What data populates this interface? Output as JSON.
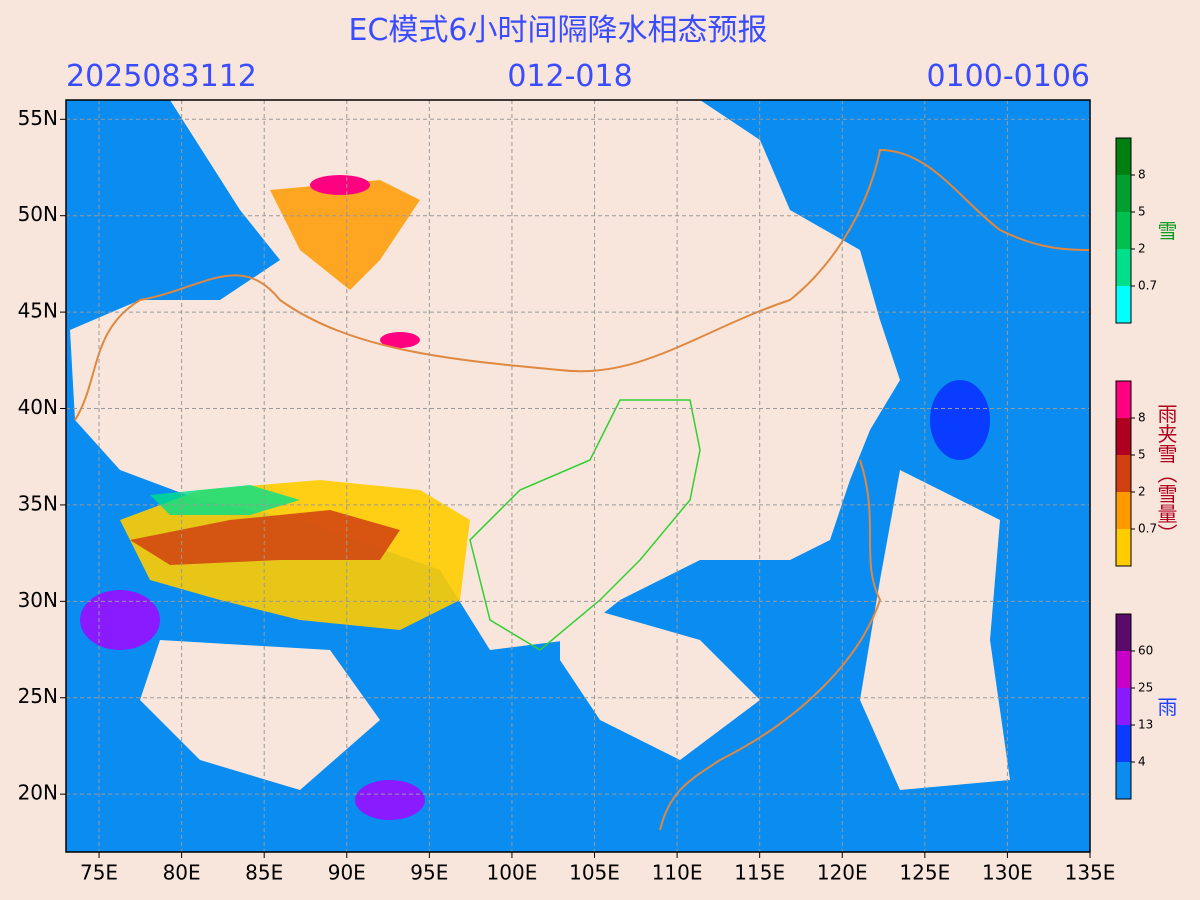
{
  "header": {
    "title": "EC模式6小时间隔降水相态预报",
    "init_time": "2025083112",
    "forecast_hours": "012-018",
    "valid_time": "0100-0106"
  },
  "map": {
    "xlim": [
      73,
      135
    ],
    "ylim": [
      17,
      56
    ],
    "xticks": [
      {
        "value": 75,
        "label": "75E"
      },
      {
        "value": 80,
        "label": "80E"
      },
      {
        "value": 85,
        "label": "85E"
      },
      {
        "value": 90,
        "label": "90E"
      },
      {
        "value": 95,
        "label": "95E"
      },
      {
        "value": 100,
        "label": "100E"
      },
      {
        "value": 105,
        "label": "105E"
      },
      {
        "value": 110,
        "label": "110E"
      },
      {
        "value": 115,
        "label": "115E"
      },
      {
        "value": 120,
        "label": "120E"
      },
      {
        "value": 125,
        "label": "125E"
      },
      {
        "value": 130,
        "label": "130E"
      },
      {
        "value": 135,
        "label": "135E"
      }
    ],
    "yticks": [
      {
        "value": 20,
        "label": "20N"
      },
      {
        "value": 25,
        "label": "25N"
      },
      {
        "value": 30,
        "label": "30N"
      },
      {
        "value": 35,
        "label": "35N"
      },
      {
        "value": 40,
        "label": "40N"
      },
      {
        "value": 45,
        "label": "45N"
      },
      {
        "value": 50,
        "label": "50N"
      },
      {
        "value": 55,
        "label": "55N"
      }
    ]
  },
  "legends": [
    {
      "name": "雪",
      "color": "#109a20",
      "levels": [
        0.7,
        2,
        5,
        8
      ],
      "colors": [
        "#00ffff",
        "#00e08a",
        "#00c050",
        "#00a030",
        "#008010"
      ]
    },
    {
      "name": "雨夹雪（雪量）",
      "color": "#b00020",
      "levels": [
        0.7,
        2,
        5,
        8
      ],
      "colors": [
        "#ffcc00",
        "#ff9900",
        "#d04010",
        "#b00020",
        "#ff0080"
      ]
    },
    {
      "name": "雨",
      "color": "#2040ff",
      "levels": [
        4,
        13,
        25,
        60
      ],
      "colors": [
        "#0a8cf0",
        "#0a3cff",
        "#8a1aff",
        "#c800c8",
        "#5a0a6a"
      ]
    }
  ]
}
